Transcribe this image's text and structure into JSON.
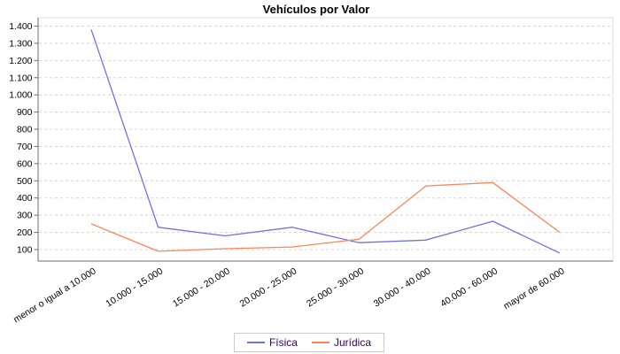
{
  "title": "Vehículos por Valor",
  "legend": {
    "items": [
      {
        "label": "Física",
        "color": "#6f74d9"
      },
      {
        "label": "Jurídica",
        "color": "#f7875a"
      }
    ]
  },
  "chart_data": {
    "type": "line",
    "title": "Vehículos por Valor",
    "categories": [
      "menor o igual a 10.000",
      "10.000 - 15.000",
      "15.000 - 20.000",
      "20.000 - 25.000",
      "25.000 - 30.000",
      "30.000 - 40.000",
      "40.000 - 60.000",
      "mayor de 60.000"
    ],
    "series": [
      {
        "name": "Física",
        "color": "#6f74d9",
        "values": [
          1380,
          230,
          180,
          230,
          140,
          155,
          265,
          80
        ]
      },
      {
        "name": "Jurídica",
        "color": "#f7875a",
        "values": [
          250,
          90,
          105,
          115,
          160,
          470,
          490,
          200
        ]
      }
    ],
    "ytick_values": [
      100,
      200,
      300,
      400,
      500,
      600,
      700,
      800,
      900,
      1000,
      1100,
      1200,
      1300,
      1400
    ],
    "ytick_labels": [
      "100",
      "200",
      "300",
      "400",
      "500",
      "600",
      "700",
      "800",
      "900",
      "1.000",
      "1.100",
      "1.200",
      "1.300",
      "1.400"
    ],
    "ylim": [
      0,
      1450
    ],
    "grid": "horizontal-dashed",
    "legend_position": "bottom",
    "x_label_angle_deg": -32
  },
  "colors": {
    "grid": "#d4d4d4",
    "axis": "#6b6b6b",
    "plot_border": "#dddddd",
    "tick_text": "#000000",
    "legend_text": "#330066",
    "legend_border": "#cccccc"
  }
}
